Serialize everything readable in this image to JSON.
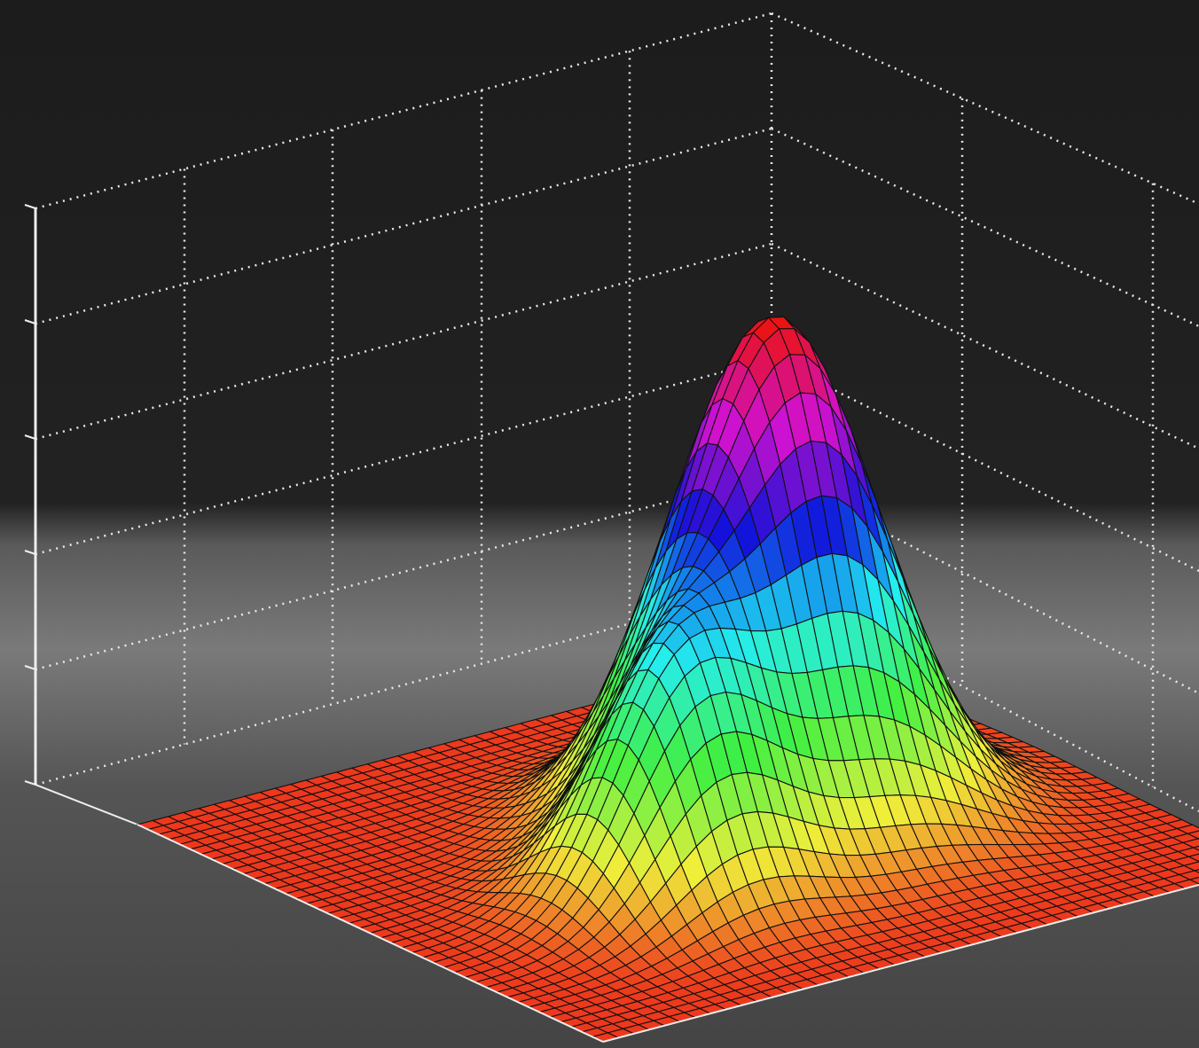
{
  "chart_data": {
    "type": "surface",
    "grid": true
  }
}
